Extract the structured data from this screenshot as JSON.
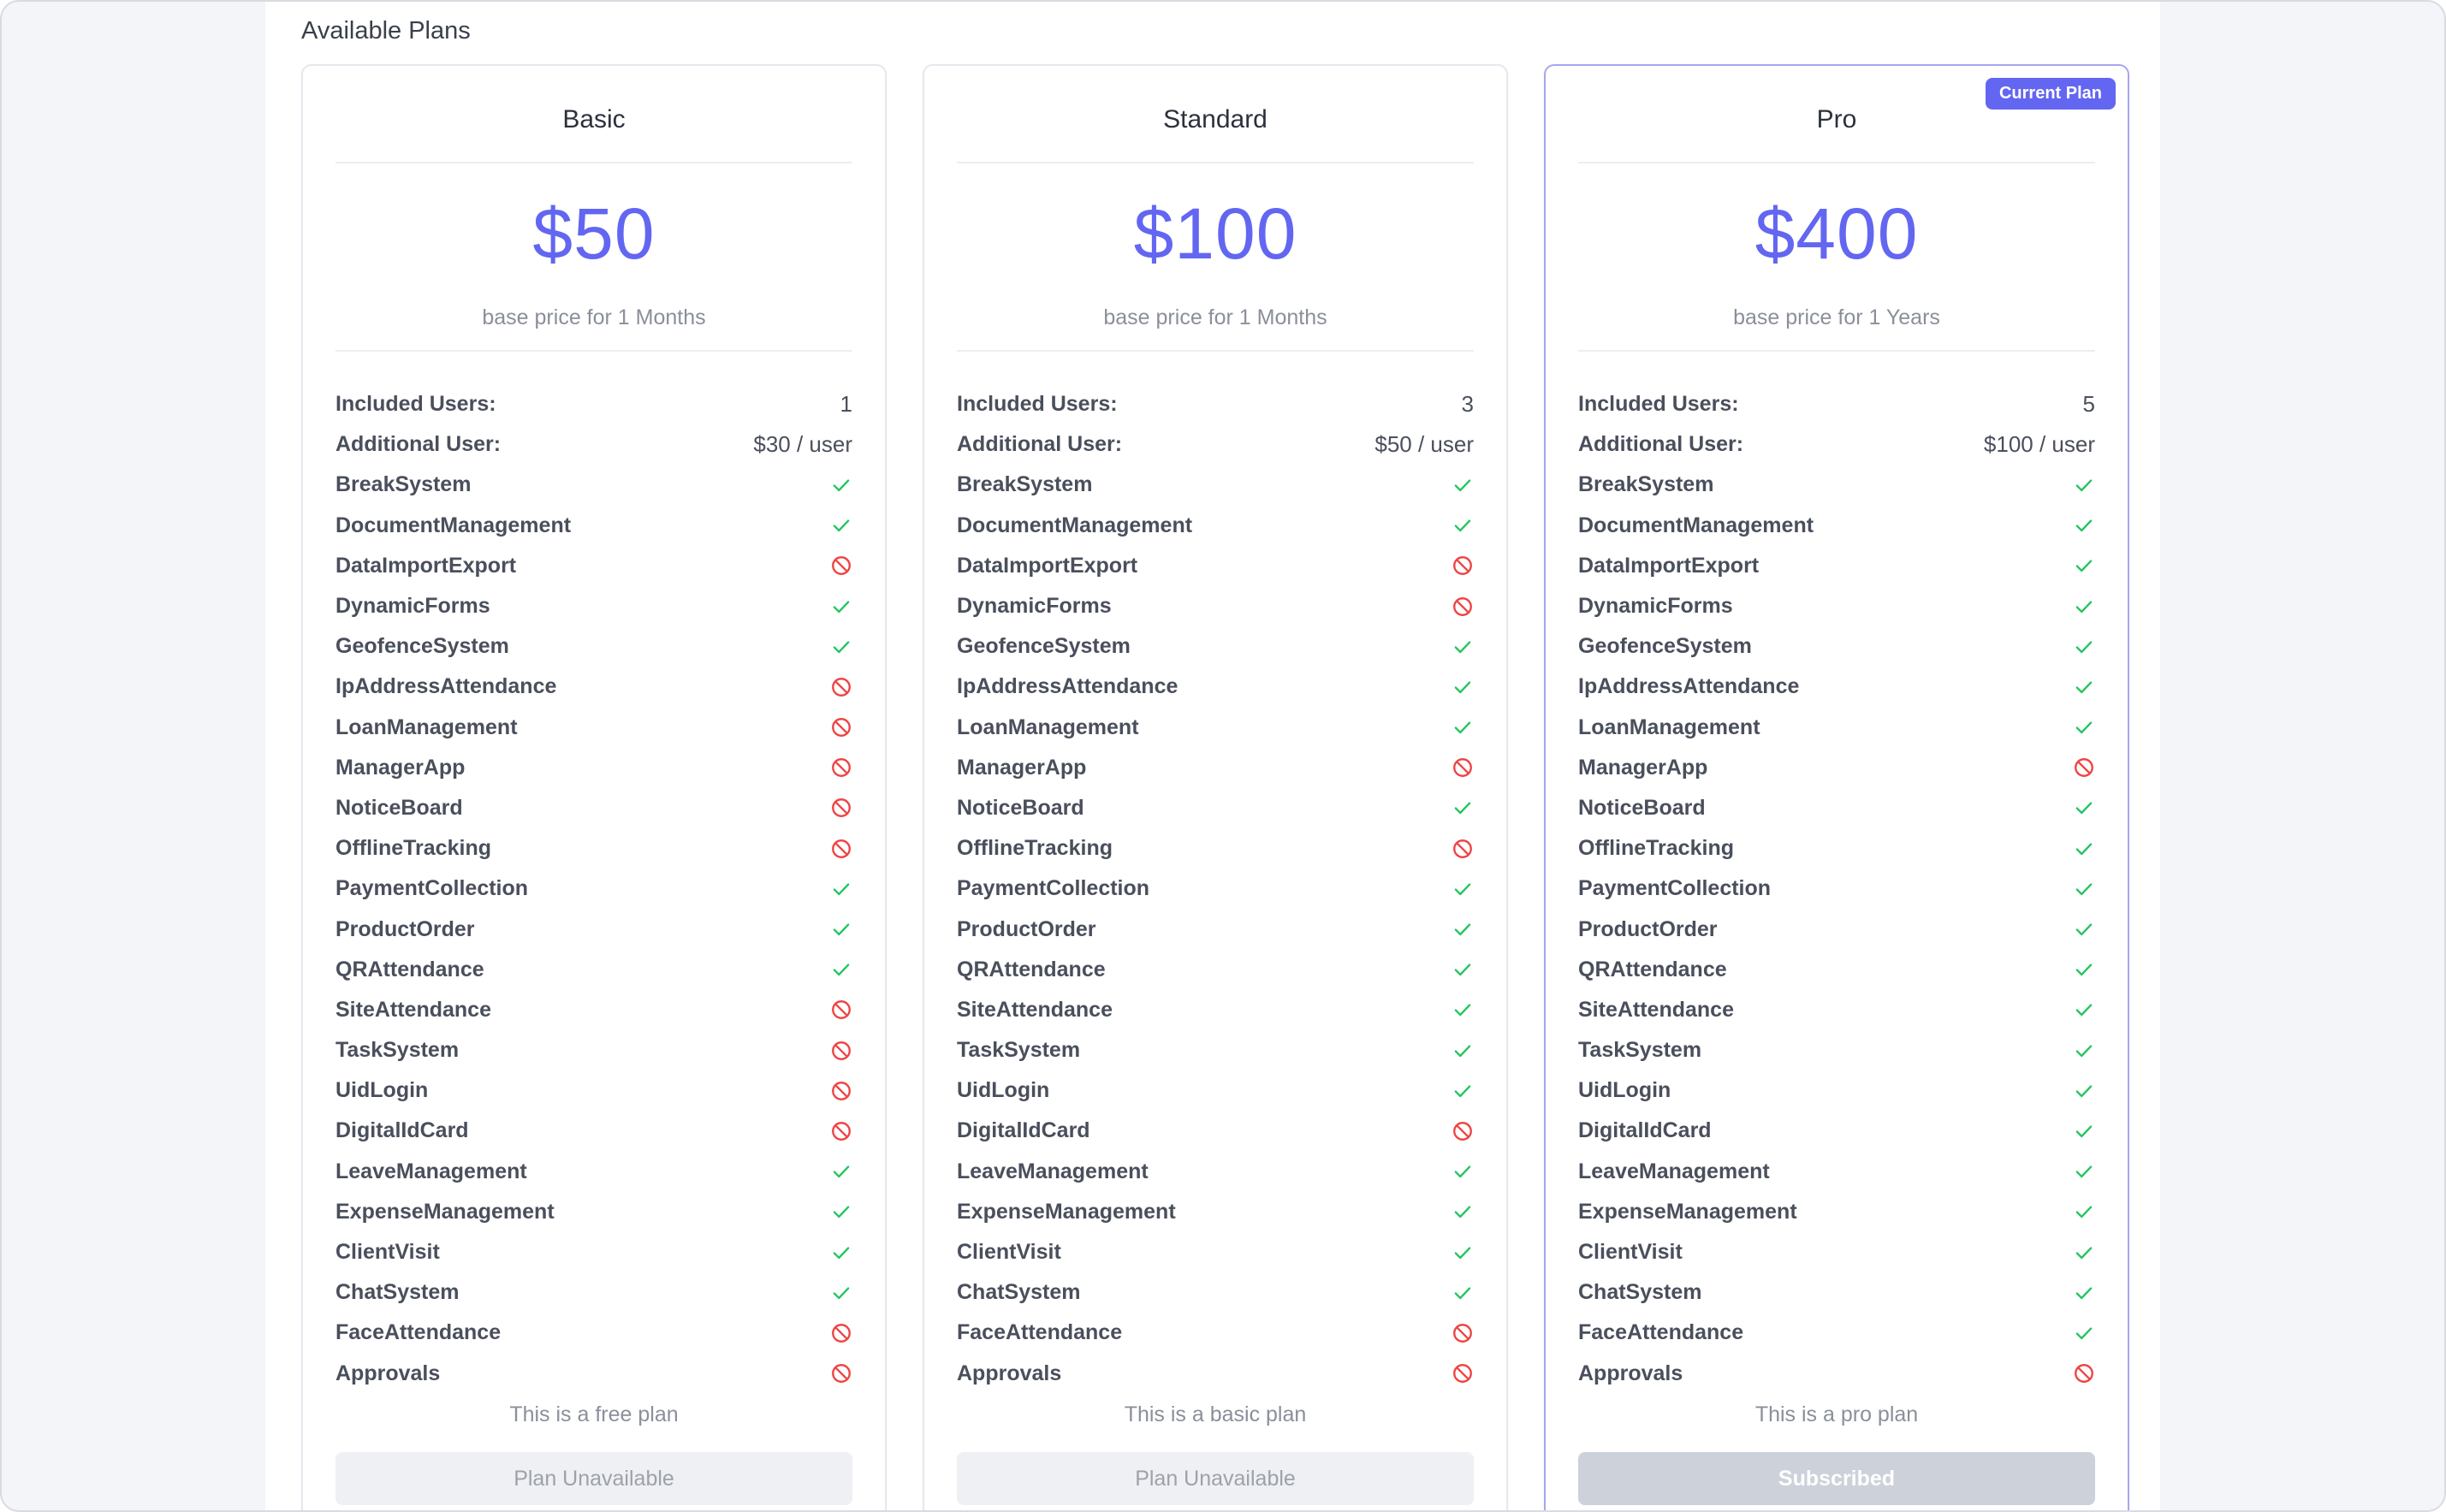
{
  "section_title": "Available Plans",
  "labels": {
    "included_users": "Included Users:",
    "additional_user": "Additional User:"
  },
  "colors": {
    "accent": "#6366f1",
    "check": "#22c55e",
    "blocked": "#ef4444"
  },
  "features": [
    "BreakSystem",
    "DocumentManagement",
    "DataImportExport",
    "DynamicForms",
    "GeofenceSystem",
    "IpAddressAttendance",
    "LoanManagement",
    "ManagerApp",
    "NoticeBoard",
    "OfflineTracking",
    "PaymentCollection",
    "ProductOrder",
    "QRAttendance",
    "SiteAttendance",
    "TaskSystem",
    "UidLogin",
    "DigitalIdCard",
    "LeaveManagement",
    "ExpenseManagement",
    "ClientVisit",
    "ChatSystem",
    "FaceAttendance",
    "Approvals"
  ],
  "plans": [
    {
      "name": "Basic",
      "price": "$50",
      "price_sub": "base price for 1 Months",
      "included_users": "1",
      "additional_user": "$30 / user",
      "features_included": [
        true,
        true,
        false,
        true,
        true,
        false,
        false,
        false,
        false,
        false,
        true,
        true,
        true,
        false,
        false,
        false,
        false,
        true,
        true,
        true,
        true,
        false,
        false
      ],
      "description": "This is a free plan",
      "button_label": "Plan Unavailable",
      "current": false,
      "badge": ""
    },
    {
      "name": "Standard",
      "price": "$100",
      "price_sub": "base price for 1 Months",
      "included_users": "3",
      "additional_user": "$50 / user",
      "features_included": [
        true,
        true,
        false,
        false,
        true,
        true,
        true,
        false,
        true,
        false,
        true,
        true,
        true,
        true,
        true,
        true,
        false,
        true,
        true,
        true,
        true,
        false,
        false
      ],
      "description": "This is a basic plan",
      "button_label": "Plan Unavailable",
      "current": false,
      "badge": ""
    },
    {
      "name": "Pro",
      "price": "$400",
      "price_sub": "base price for 1 Years",
      "included_users": "5",
      "additional_user": "$100 / user",
      "features_included": [
        true,
        true,
        true,
        true,
        true,
        true,
        true,
        false,
        true,
        true,
        true,
        true,
        true,
        true,
        true,
        true,
        true,
        true,
        true,
        true,
        true,
        true,
        false
      ],
      "description": "This is a pro plan",
      "button_label": "Subscribed",
      "current": true,
      "badge": "Current Plan"
    }
  ]
}
